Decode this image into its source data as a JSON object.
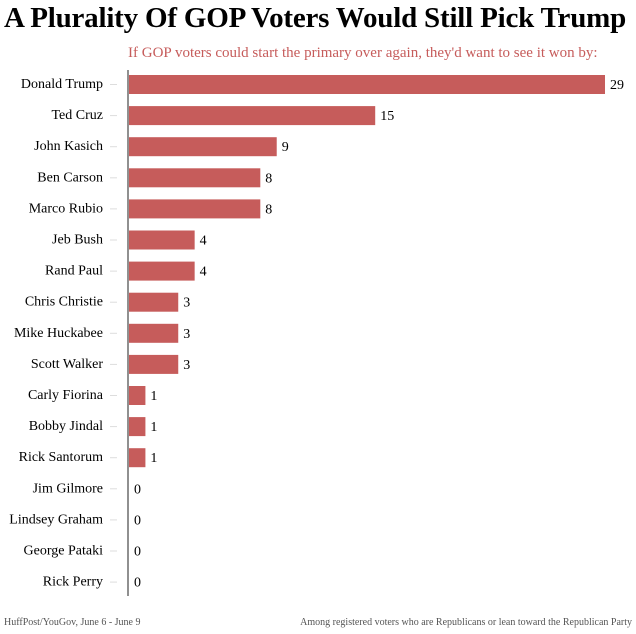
{
  "title": "A Plurality Of GOP Voters Would Still Pick Trump",
  "subtitle": "If GOP voters could start the primary over again, they'd want to see it won by:",
  "footer": {
    "source": "HuffPost/YouGov, June 6 - June 9",
    "note": "Among registered voters who are Republicans or lean toward the Republican Party"
  },
  "colors": {
    "bar": "#c65c5b",
    "title": "#000000",
    "subtitle": "#c65c5b"
  },
  "chart_data": {
    "type": "bar",
    "orientation": "horizontal",
    "categories": [
      "Donald Trump",
      "Ted Cruz",
      "John Kasich",
      "Ben Carson",
      "Marco Rubio",
      "Jeb Bush",
      "Rand Paul",
      "Chris Christie",
      "Mike Huckabee",
      "Scott Walker",
      "Carly Fiorina",
      "Bobby Jindal",
      "Rick Santorum",
      "Jim Gilmore",
      "Lindsey Graham",
      "George Pataki",
      "Rick Perry"
    ],
    "values": [
      29,
      15,
      9,
      8,
      8,
      4,
      4,
      3,
      3,
      3,
      1,
      1,
      1,
      0,
      0,
      0,
      0
    ],
    "xlim": [
      0,
      29
    ],
    "grid": false,
    "legend": "none"
  }
}
